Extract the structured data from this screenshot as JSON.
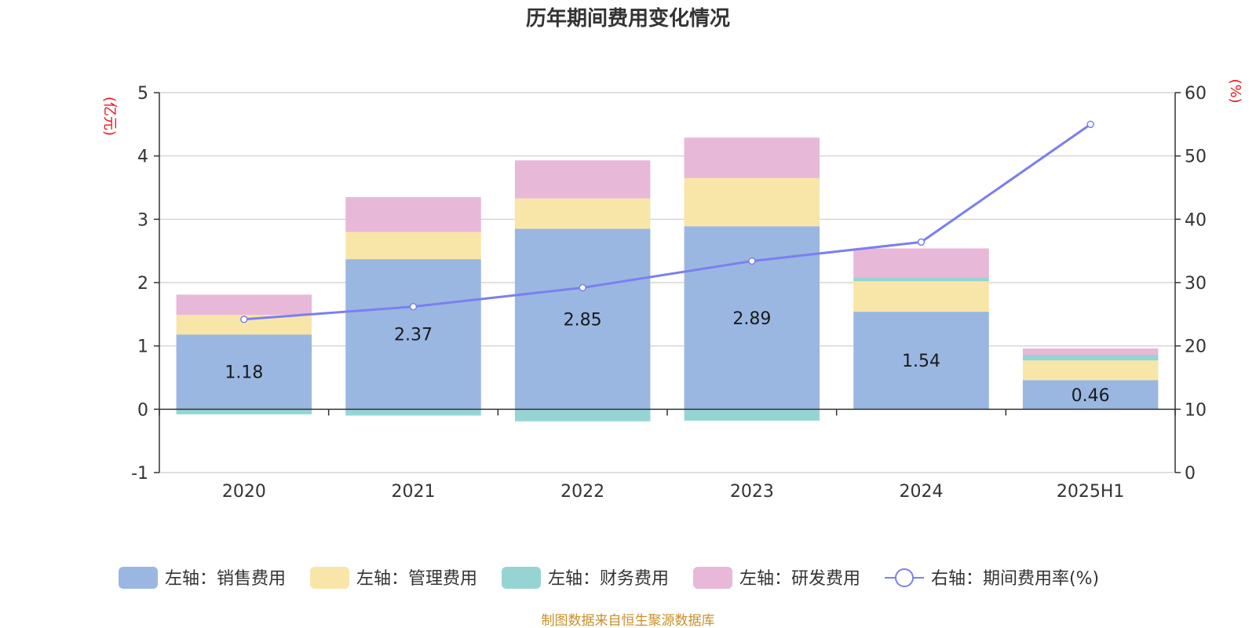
{
  "colors": {
    "sales": "#9ab7e1",
    "admin": "#f8e6a8",
    "finance": "#96d4d4",
    "rnd": "#e8b8d8",
    "rate_line": "#7b7ff0",
    "axis_unit": "#e8141a",
    "source": "#c8902a"
  },
  "chart_data": {
    "type": "bar",
    "title": "历年期间费用变化情况",
    "categories": [
      "2020",
      "2021",
      "2022",
      "2023",
      "2024",
      "2025H1"
    ],
    "left_axis": {
      "unit": "(亿元)",
      "ylim": [
        -1,
        5
      ],
      "ticks": [
        "-1",
        "0",
        "1",
        "2",
        "3",
        "4",
        "5"
      ]
    },
    "right_axis": {
      "unit": "(%)",
      "ylim": [
        0,
        60
      ],
      "ticks": [
        "0",
        "10",
        "20",
        "30",
        "40",
        "50",
        "60"
      ]
    },
    "series": [
      {
        "key": "sales",
        "name": "左轴：销售费用",
        "axis": "left",
        "stack": true,
        "values": [
          1.18,
          2.37,
          2.85,
          2.89,
          1.54,
          0.46
        ]
      },
      {
        "key": "admin",
        "name": "左轴：管理费用",
        "axis": "left",
        "stack": true,
        "values": [
          0.31,
          0.43,
          0.48,
          0.76,
          0.48,
          0.31
        ]
      },
      {
        "key": "finance",
        "name": "左轴：财务费用",
        "axis": "left",
        "stack": true,
        "values": [
          -0.08,
          -0.1,
          -0.19,
          -0.18,
          0.06,
          0.09
        ]
      },
      {
        "key": "rnd",
        "name": "左轴：研发费用",
        "axis": "left",
        "stack": true,
        "values": [
          0.32,
          0.55,
          0.6,
          0.64,
          0.46,
          0.1
        ]
      },
      {
        "key": "rate",
        "name": "右轴：期间费用率(%)",
        "axis": "right",
        "type": "line",
        "values": [
          24.2,
          26.2,
          29.2,
          33.4,
          36.4,
          55.0
        ]
      }
    ],
    "data_labels": [
      "1.18",
      "2.37",
      "2.85",
      "2.89",
      "1.54",
      "0.46"
    ],
    "grid": true,
    "legend_position": "bottom"
  },
  "source_text": "制图数据来自恒生聚源数据库"
}
